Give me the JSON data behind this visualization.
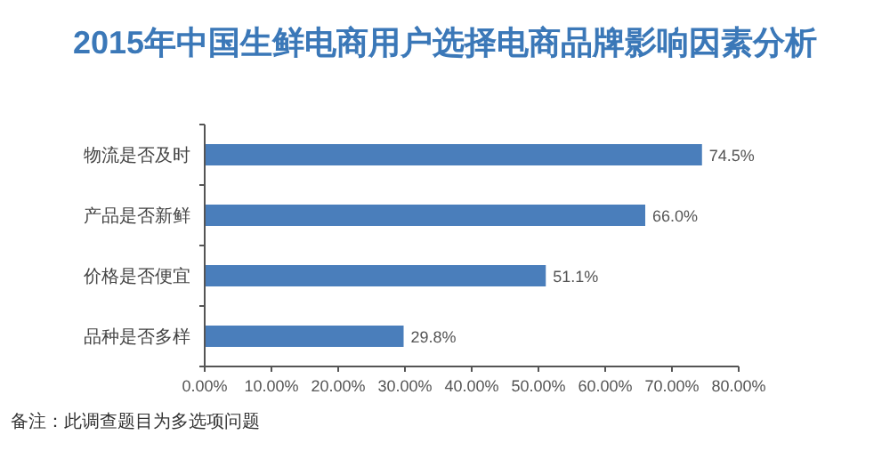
{
  "chart_data": {
    "type": "bar",
    "orientation": "horizontal",
    "title": "2015年中国生鲜电商用户选择电商品牌影响因素分析",
    "categories": [
      "物流是否及时",
      "产品是否新鲜",
      "价格是否便宜",
      "品种是否多样"
    ],
    "values": [
      74.5,
      66.0,
      51.1,
      29.8
    ],
    "color": "#4a7ebb",
    "value_labels": [
      "74.5%",
      "66.0%",
      "51.1%",
      "29.8%"
    ],
    "xlim": [
      0,
      80
    ],
    "xticks": [
      {
        "value": 0,
        "label": "0.00%"
      },
      {
        "value": 10,
        "label": "10.00%"
      },
      {
        "value": 20,
        "label": "20.00%"
      },
      {
        "value": 30,
        "label": "30.00%"
      },
      {
        "value": 40,
        "label": "40.00%"
      },
      {
        "value": 50,
        "label": "50.00%"
      },
      {
        "value": 60,
        "label": "60.00%"
      },
      {
        "value": 70,
        "label": "70.00%"
      },
      {
        "value": 80,
        "label": "80.00%"
      }
    ],
    "grid": false,
    "annotations": [
      "备注：此调查题目为多选项问题"
    ]
  }
}
